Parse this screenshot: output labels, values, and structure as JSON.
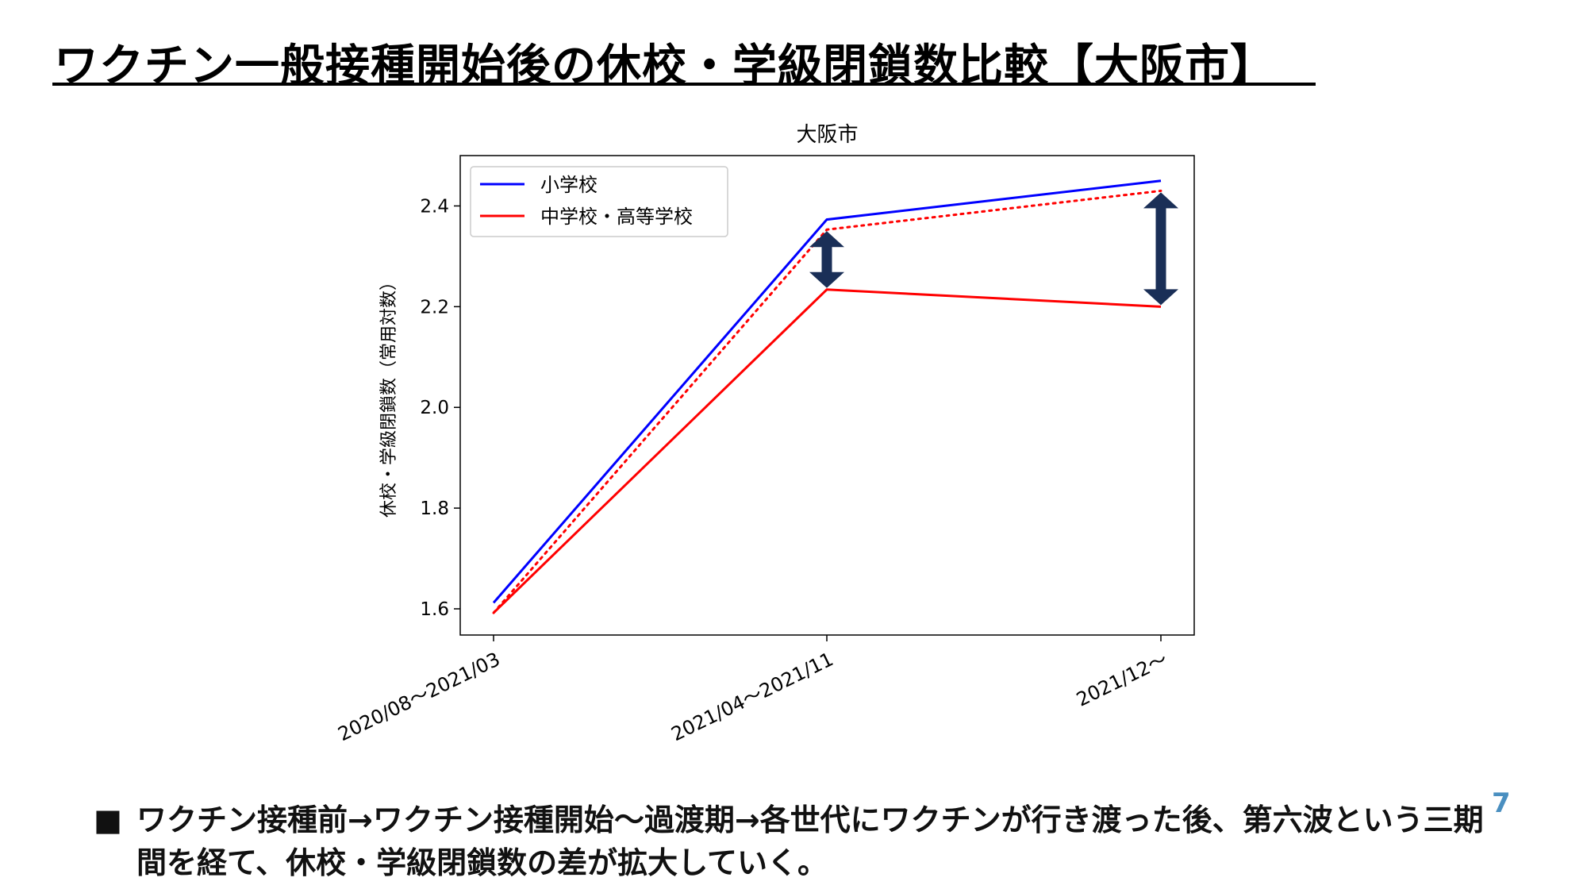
{
  "slide": {
    "title": "ワクチン一般接種開始後の休校・学級閉鎖数比較【大阪市】",
    "page_number": "7",
    "bullet_marker": "■",
    "bullet_text": "ワクチン接種前→ワクチン接種開始〜過渡期→各世代にワクチンが行き渡った後、第六波という三期間を経て、休校・学級閉鎖数の差が拡大していく。"
  },
  "colors": {
    "series_primary": "#0000ff",
    "series_secondary": "#ff0000",
    "arrow": "#1a2f57",
    "axis": "#000000"
  },
  "chart_data": {
    "type": "line",
    "title": "大阪市",
    "xlabel": "",
    "ylabel": "休校・学級閉鎖数（常用対数）",
    "categories": [
      "2020/08～2021/03",
      "2021/04～2021/11",
      "2021/12～"
    ],
    "series": [
      {
        "name": "小学校",
        "values": [
          1.612,
          2.373,
          2.45
        ],
        "style": "solid",
        "color": "#0000ff"
      },
      {
        "name": "中学校・高等学校",
        "values": [
          1.592,
          2.234,
          2.2
        ],
        "style": "solid",
        "color": "#ff0000"
      },
      {
        "name": "",
        "values": [
          1.592,
          2.353,
          2.43
        ],
        "style": "dotted",
        "color": "#ff0000"
      }
    ],
    "ylim": [
      1.548,
      2.5
    ],
    "yticks": [
      1.6,
      1.8,
      2.0,
      2.2,
      2.4
    ],
    "ytick_labels": [
      "1.6",
      "1.8",
      "2.0",
      "2.2",
      "2.4"
    ],
    "legend_position": "top-left",
    "grid": false,
    "annotations": [
      {
        "type": "double-arrow",
        "category_index": 1,
        "from": 2.234,
        "to": 2.353
      },
      {
        "type": "double-arrow",
        "category_index": 2,
        "from": 2.2,
        "to": 2.43
      }
    ]
  }
}
